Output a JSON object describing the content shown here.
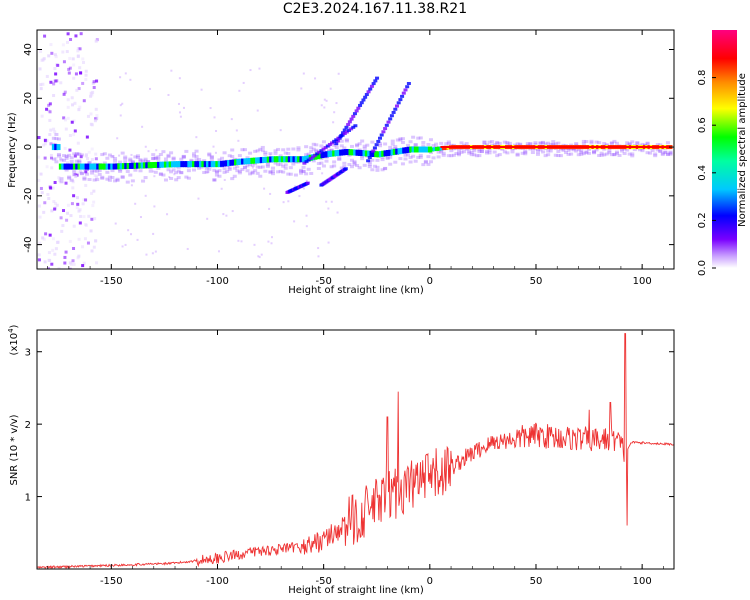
{
  "title": "C2E3.2024.167.11.38.R21",
  "chart_data": [
    {
      "type": "heatmap",
      "xlabel": "Height of straight line (km)",
      "ylabel": "Frequency (Hz)",
      "xlim": [
        -185,
        115
      ],
      "ylim": [
        -50,
        48
      ],
      "x_ticks": [
        "-150",
        "-100",
        "-50",
        "0",
        "50",
        "100"
      ],
      "y_ticks": [
        "-40",
        "-20",
        "0",
        "20",
        "40"
      ],
      "colorbar": {
        "label": "Normalized spectral amplitude",
        "range": [
          0.0,
          1.0
        ],
        "ticks": [
          "0.0",
          "0.2",
          "0.4",
          "0.6",
          "0.8"
        ],
        "colors": [
          "#ffffff",
          "#7a00ff",
          "#0000ff",
          "#00c8ff",
          "#00ff00",
          "#ffff00",
          "#ff8c00",
          "#ff0000",
          "#ff0080"
        ]
      },
      "ridge": {
        "description_points": [
          [
            -175,
            -8
          ],
          [
            -150,
            -8
          ],
          [
            -120,
            -7
          ],
          [
            -100,
            -7
          ],
          [
            -90,
            -6
          ],
          [
            -75,
            -5
          ],
          [
            -60,
            -5
          ],
          [
            -50,
            -3
          ],
          [
            -40,
            -2
          ],
          [
            -25,
            -3
          ],
          [
            -10,
            -1
          ],
          [
            0,
            -1
          ],
          [
            10,
            0
          ],
          [
            50,
            0
          ],
          [
            90,
            0
          ],
          [
            113,
            0
          ]
        ]
      }
    },
    {
      "type": "line",
      "xlabel": "Height of straight line (km)",
      "ylabel": "SNR (10 * v/v)",
      "multiplier": "(x10",
      "multiplier_exp": "4",
      "multiplier_close": ")",
      "xlim": [
        -185,
        115
      ],
      "ylim": [
        0,
        3.3
      ],
      "x_ticks": [
        "-150",
        "-100",
        "-50",
        "0",
        "50",
        "100"
      ],
      "y_ticks": [
        "1",
        "2",
        "3"
      ],
      "color": "#ee3333",
      "trend": [
        [
          -185,
          0.02
        ],
        [
          -150,
          0.05
        ],
        [
          -120,
          0.08
        ],
        [
          -100,
          0.15
        ],
        [
          -80,
          0.25
        ],
        [
          -60,
          0.3
        ],
        [
          -50,
          0.4
        ],
        [
          -40,
          0.6
        ],
        [
          -30,
          0.8
        ],
        [
          -20,
          1.0
        ],
        [
          -10,
          1.15
        ],
        [
          0,
          1.25
        ],
        [
          10,
          1.4
        ],
        [
          20,
          1.6
        ],
        [
          30,
          1.75
        ],
        [
          40,
          1.8
        ],
        [
          50,
          1.85
        ],
        [
          60,
          1.82
        ],
        [
          70,
          1.8
        ],
        [
          80,
          1.78
        ],
        [
          88,
          1.8
        ],
        [
          92,
          1.6
        ],
        [
          95,
          1.75
        ],
        [
          115,
          1.72
        ]
      ],
      "peaks": [
        [
          -15,
          2.45
        ],
        [
          -20,
          2.1
        ],
        [
          92,
          3.25
        ],
        [
          93,
          0.6
        ],
        [
          75,
          2.2
        ],
        [
          85,
          2.3
        ]
      ]
    }
  ]
}
